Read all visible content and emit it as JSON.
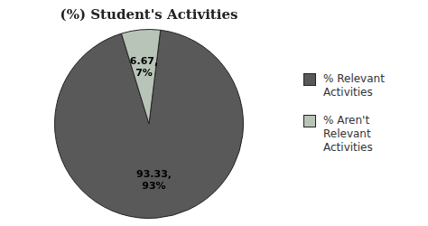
{
  "chart_data": {
    "type": "pie",
    "title": "(%) Student's Activities",
    "categories": [
      "% Relevant\nActivities",
      "% Aren't\nRelevant\nActivities"
    ],
    "values": [
      93.33,
      6.67
    ],
    "value_labels": [
      "93.33,\n93%",
      "6.67,\n7%"
    ],
    "data_labels": true,
    "colors": [
      "#595959",
      "#b8c4b8"
    ],
    "legend": "right"
  }
}
